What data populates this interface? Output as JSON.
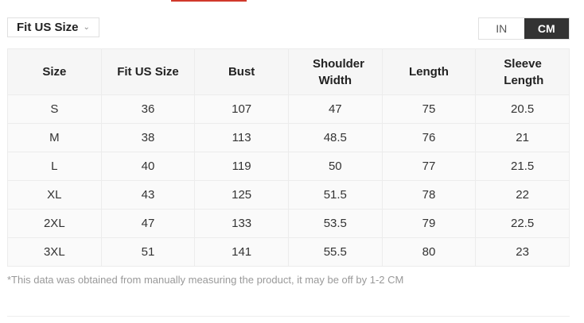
{
  "selector": {
    "label": "Fit US Size"
  },
  "units": {
    "options": [
      "IN",
      "CM"
    ],
    "selected": "CM"
  },
  "table": {
    "headers": [
      "Size",
      "Fit US Size",
      "Bust",
      "Shoulder Width",
      "Length",
      "Sleeve Length"
    ],
    "rows": [
      [
        "S",
        "36",
        "107",
        "47",
        "75",
        "20.5"
      ],
      [
        "M",
        "38",
        "113",
        "48.5",
        "76",
        "21"
      ],
      [
        "L",
        "40",
        "119",
        "50",
        "77",
        "21.5"
      ],
      [
        "XL",
        "43",
        "125",
        "51.5",
        "78",
        "22"
      ],
      [
        "2XL",
        "47",
        "133",
        "53.5",
        "79",
        "22.5"
      ],
      [
        "3XL",
        "51",
        "141",
        "55.5",
        "80",
        "23"
      ]
    ]
  },
  "note": "*This data was obtained from manually measuring the product, it may be off by 1-2 CM",
  "colors": {
    "accent": "#d0392b",
    "toggle_active": "#333333"
  }
}
